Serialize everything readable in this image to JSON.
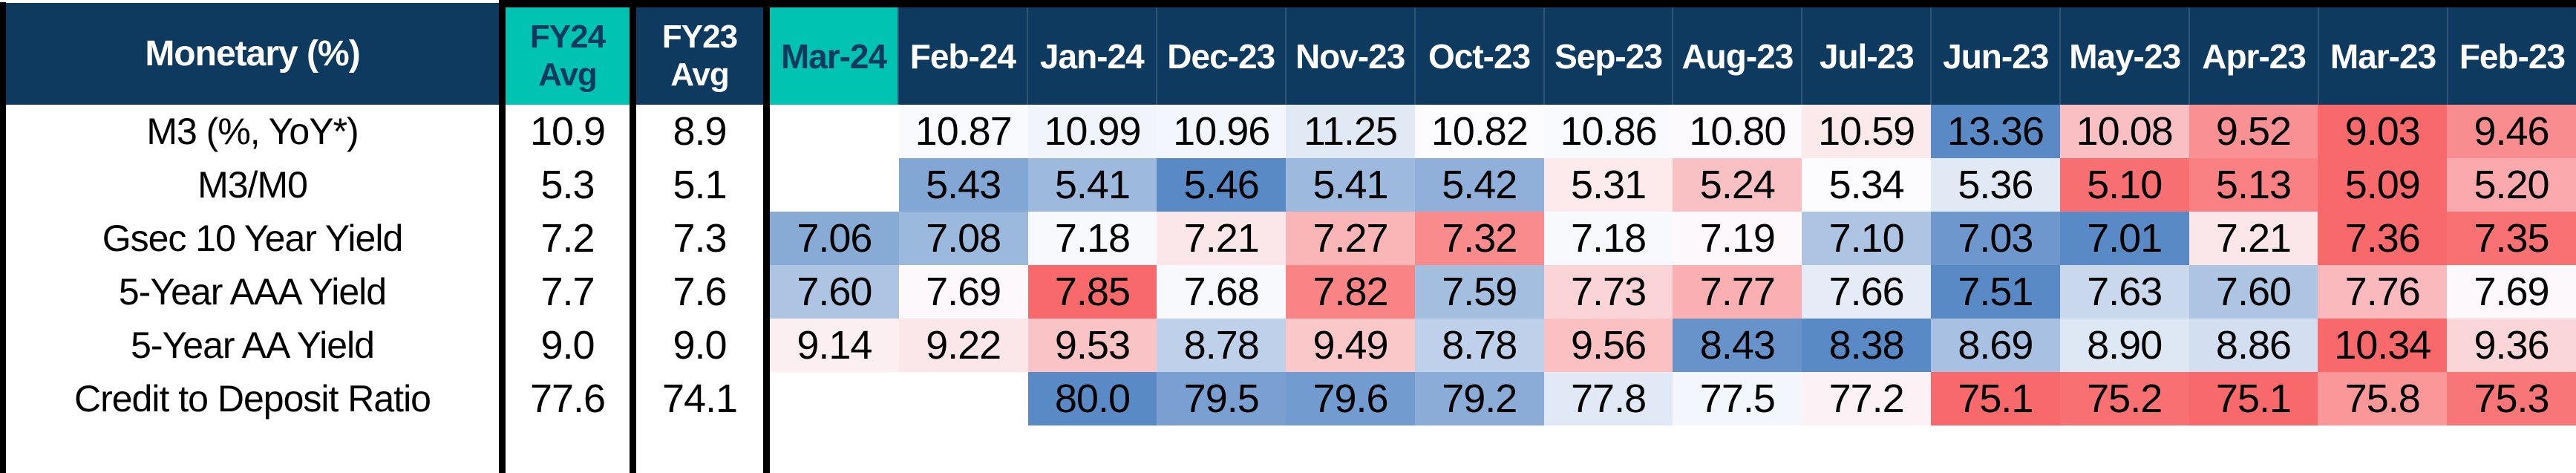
{
  "table": {
    "corner_label": "Monetary (%)",
    "fy24_header": {
      "line1": "FY24",
      "line2": "Avg"
    },
    "fy23_header": {
      "line1": "FY23",
      "line2": "Avg"
    },
    "months": [
      "Mar-24",
      "Feb-24",
      "Jan-24",
      "Dec-23",
      "Nov-23",
      "Oct-23",
      "Sep-23",
      "Aug-23",
      "Jul-23",
      "Jun-23",
      "May-23",
      "Apr-23",
      "Mar-23",
      "Feb-23"
    ],
    "highlight_month": "Mar-24"
  },
  "colors": {
    "navy": "#0D3A5E",
    "teal": "#00C3B2",
    "black": "#000000",
    "header_text": "#FFFFFF",
    "text_dark": "#000000",
    "heat_blue": "#5A8AC6",
    "heat_mid": "#FCFCFF",
    "heat_red": "#F8696B",
    "blank_cell": "#FFFFFF"
  },
  "chart_data": {
    "type": "heatmap",
    "title": "Monetary (%)",
    "columns": [
      "FY24 Avg",
      "FY23 Avg",
      "Mar-24",
      "Feb-24",
      "Jan-24",
      "Dec-23",
      "Nov-23",
      "Oct-23",
      "Sep-23",
      "Aug-23",
      "Jul-23",
      "Jun-23",
      "May-23",
      "Apr-23",
      "Mar-23",
      "Feb-23"
    ],
    "color_scale_note": "Excel-style 3-color scale per row: blue #5A8AC6 / white #FCFCFF / red #F8696B, midpoint at row median; month cells only (FY avg columns uncolored)",
    "rows": [
      {
        "label": "M3 (%, YoY*)",
        "fy24_avg": "10.9",
        "fy23_avg": "8.9",
        "decimals": 2,
        "direction": "high_is_blue",
        "monthly": [
          null,
          10.87,
          10.99,
          10.96,
          11.25,
          10.82,
          10.86,
          10.8,
          10.59,
          13.36,
          10.08,
          9.52,
          9.03,
          9.46
        ]
      },
      {
        "label": "M3/M0",
        "fy24_avg": "5.3",
        "fy23_avg": "5.1",
        "decimals": 2,
        "direction": "high_is_blue",
        "monthly": [
          null,
          5.43,
          5.41,
          5.46,
          5.41,
          5.42,
          5.31,
          5.24,
          5.34,
          5.36,
          5.1,
          5.13,
          5.09,
          5.2
        ]
      },
      {
        "label": "Gsec 10 Year Yield",
        "fy24_avg": "7.2",
        "fy23_avg": "7.3",
        "decimals": 2,
        "direction": "high_is_red",
        "monthly": [
          7.06,
          7.08,
          7.18,
          7.21,
          7.27,
          7.32,
          7.18,
          7.19,
          7.1,
          7.03,
          7.01,
          7.21,
          7.36,
          7.35
        ]
      },
      {
        "label": "5-Year AAA Yield",
        "fy24_avg": "7.7",
        "fy23_avg": "7.6",
        "decimals": 2,
        "direction": "high_is_red",
        "monthly": [
          7.6,
          7.69,
          7.85,
          7.68,
          7.82,
          7.59,
          7.73,
          7.77,
          7.66,
          7.51,
          7.63,
          7.6,
          7.76,
          7.69
        ]
      },
      {
        "label": "5-Year AA Yield",
        "fy24_avg": "9.0",
        "fy23_avg": "9.0",
        "decimals": 2,
        "direction": "high_is_red",
        "monthly": [
          9.14,
          9.22,
          9.53,
          8.78,
          9.49,
          8.78,
          9.56,
          8.43,
          8.38,
          8.69,
          8.9,
          8.86,
          10.34,
          9.36
        ]
      },
      {
        "label": "Credit to Deposit Ratio",
        "fy24_avg": "77.6",
        "fy23_avg": "74.1",
        "decimals": 1,
        "direction": "high_is_blue",
        "monthly": [
          null,
          null,
          80.0,
          79.5,
          79.6,
          79.2,
          77.8,
          77.5,
          77.2,
          75.1,
          75.2,
          75.1,
          75.8,
          75.3
        ]
      }
    ]
  }
}
